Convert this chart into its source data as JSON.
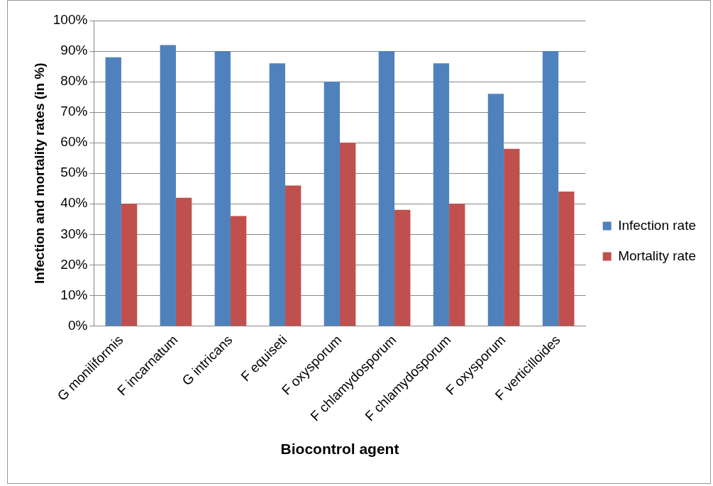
{
  "chart_data": {
    "type": "bar",
    "xlabel": "Biocontrol agent",
    "ylabel": "Infection and mortality rates (in %)",
    "categories": [
      "G moniliformis",
      "F incarnatum",
      "G intricans",
      "F equiseti",
      "F oxysporum",
      "F chlamydosporum",
      "F chlamydosporum",
      "F oxysporum",
      "F verticilloides"
    ],
    "series": [
      {
        "name": "Infection rate",
        "color": "#4f81bd",
        "values": [
          88,
          92,
          90,
          86,
          80,
          90,
          86,
          76,
          90
        ]
      },
      {
        "name": "Mortality rate",
        "color": "#c0504d",
        "values": [
          40,
          42,
          36,
          46,
          60,
          38,
          40,
          58,
          44
        ]
      }
    ],
    "ylim": [
      0,
      100
    ],
    "yticks": [
      {
        "value": 0,
        "label": "0%"
      },
      {
        "value": 10,
        "label": "10%"
      },
      {
        "value": 20,
        "label": "20%"
      },
      {
        "value": 30,
        "label": "30%"
      },
      {
        "value": 40,
        "label": "40%"
      },
      {
        "value": 50,
        "label": "50%"
      },
      {
        "value": 60,
        "label": "60%"
      },
      {
        "value": 70,
        "label": "70%"
      },
      {
        "value": 80,
        "label": "80%"
      },
      {
        "value": 90,
        "label": "90%"
      },
      {
        "value": 100,
        "label": "100%"
      }
    ],
    "grid": "y",
    "legend": "right"
  }
}
